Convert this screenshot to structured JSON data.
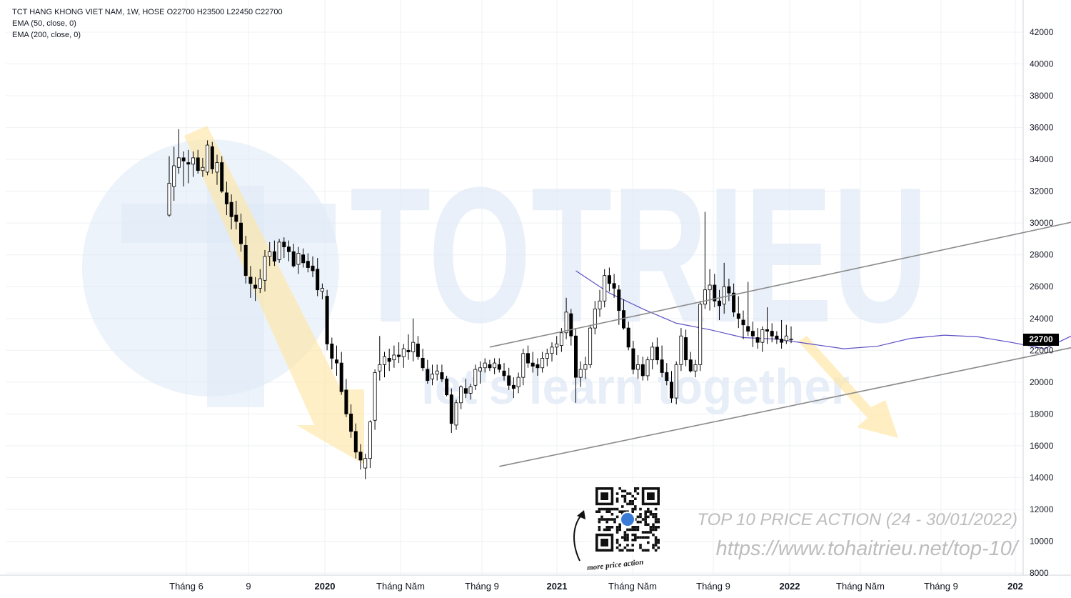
{
  "legend": {
    "line1": "TCT HANG KHONG VIET NAM, 1W, HOSE  O22700  H23500  L22450  C22700",
    "line2": "EMA (50, close, 0)",
    "line3": "EMA (200, close, 0)"
  },
  "last_price_label": "22700",
  "watermark": {
    "brand": "TOTRIEU",
    "slogan": "let's learn together"
  },
  "promo": {
    "title": "TOP 10 PRICE ACTION (24 - 30/01/2022)",
    "url": "https://www.tohaitrieu.net/top-10/",
    "qr_caption": "more price action"
  },
  "colors": {
    "up_candle": "#ffffff",
    "down_candle": "#000000",
    "ema50": "#5b4fc4",
    "trendline": "#8a8a8a",
    "arrow_fill": "#fde7a8",
    "watermark": "#dfe9f6",
    "price_tag_bg": "#000000"
  },
  "chart_data": {
    "type": "candlestick",
    "title": "TCT HANG KHONG VIET NAM, 1W, HOSE",
    "timeframe": "1W",
    "exchange": "HOSE",
    "last_bar": {
      "open": 22700,
      "high": 23500,
      "low": 22450,
      "close": 22700
    },
    "y_axis": {
      "ticks": [
        42000,
        40000,
        38000,
        36000,
        34000,
        32000,
        30000,
        28000,
        26000,
        24000,
        22000,
        20000,
        18000,
        16000,
        14000,
        12000,
        10000,
        8000
      ],
      "range": [
        8000,
        42500
      ],
      "position": "right"
    },
    "x_axis": {
      "ticks": [
        "Tháng 6",
        "9",
        "2020",
        "Tháng Năm",
        "Tháng 9",
        "2021",
        "Tháng Năm",
        "Tháng 9",
        "2022",
        "Tháng Năm",
        "Tháng 9",
        "202"
      ]
    },
    "grid": true,
    "ema50": [
      {
        "week": 85,
        "value": 27000
      },
      {
        "week": 92,
        "value": 25600
      },
      {
        "week": 99,
        "value": 24600
      },
      {
        "week": 106,
        "value": 23700
      },
      {
        "week": 113,
        "value": 23300
      },
      {
        "week": 120,
        "value": 22800
      },
      {
        "week": 127,
        "value": 22700
      },
      {
        "week": 134,
        "value": 22400
      },
      {
        "week": 141,
        "value": 22100
      },
      {
        "week": 148,
        "value": 22250
      },
      {
        "week": 155,
        "value": 22750
      },
      {
        "week": 162,
        "value": 22950
      },
      {
        "week": 169,
        "value": 22850
      },
      {
        "week": 176,
        "value": 22500
      },
      {
        "week": 183,
        "value": 22100
      },
      {
        "week": 190,
        "value": 23100
      },
      {
        "week": 197,
        "value": 23300
      },
      {
        "week": 204,
        "value": 23150
      }
    ],
    "candles": [
      [
        30500,
        34200,
        30400,
        32500
      ],
      [
        32300,
        34800,
        31400,
        33600
      ],
      [
        33500,
        35900,
        33100,
        34100
      ],
      [
        34100,
        34500,
        32300,
        33900
      ],
      [
        33800,
        34600,
        32500,
        33700
      ],
      [
        33700,
        34500,
        32900,
        34100
      ],
      [
        34100,
        34600,
        33100,
        33300
      ],
      [
        33300,
        34100,
        32900,
        33500
      ],
      [
        33200,
        35200,
        33000,
        34900
      ],
      [
        34800,
        35100,
        33100,
        33400
      ],
      [
        33200,
        34300,
        32400,
        33800
      ],
      [
        33800,
        34200,
        31900,
        32000
      ],
      [
        31900,
        32600,
        30500,
        31200
      ],
      [
        31300,
        31800,
        29600,
        30400
      ],
      [
        30500,
        31400,
        29600,
        30100
      ],
      [
        30000,
        30600,
        28200,
        28700
      ],
      [
        28600,
        29200,
        26200,
        26700
      ],
      [
        26600,
        27300,
        25300,
        26200
      ],
      [
        26100,
        26600,
        25100,
        25900
      ],
      [
        25900,
        27100,
        25600,
        26500
      ],
      [
        26400,
        28300,
        25700,
        27900
      ],
      [
        27900,
        28800,
        27300,
        28200
      ],
      [
        28200,
        28900,
        27300,
        27600
      ],
      [
        27700,
        29000,
        27500,
        28800
      ],
      [
        28800,
        29100,
        27800,
        28500
      ],
      [
        28500,
        28900,
        27600,
        28200
      ],
      [
        28200,
        28700,
        27200,
        27300
      ],
      [
        27400,
        28500,
        26800,
        28100
      ],
      [
        28000,
        28400,
        27200,
        27500
      ],
      [
        27600,
        28100,
        26900,
        27200
      ],
      [
        27300,
        27900,
        26600,
        27000
      ],
      [
        27100,
        27800,
        25400,
        25800
      ],
      [
        25700,
        26200,
        25200,
        25900
      ],
      [
        25400,
        25800,
        22000,
        22400
      ],
      [
        22400,
        22800,
        20800,
        21500
      ],
      [
        21400,
        22300,
        20400,
        21200
      ],
      [
        21200,
        21900,
        19200,
        19400
      ],
      [
        19500,
        20200,
        17800,
        18000
      ],
      [
        18000,
        18600,
        16500,
        16900
      ],
      [
        16900,
        17400,
        15200,
        15600
      ],
      [
        15600,
        16100,
        14500,
        15100
      ],
      [
        14600,
        15500,
        13900,
        15200
      ],
      [
        15200,
        17600,
        14600,
        17500
      ],
      [
        17600,
        20800,
        17000,
        20600
      ],
      [
        20700,
        22900,
        20100,
        21100
      ],
      [
        21100,
        21900,
        20300,
        21600
      ],
      [
        21500,
        22100,
        20700,
        21300
      ],
      [
        21400,
        22300,
        20900,
        21700
      ],
      [
        21700,
        22500,
        21200,
        21600
      ],
      [
        21600,
        22400,
        20900,
        22100
      ],
      [
        22000,
        23000,
        21400,
        21900
      ],
      [
        21900,
        24000,
        21300,
        22500
      ],
      [
        22400,
        22900,
        21400,
        21600
      ],
      [
        21500,
        22100,
        20700,
        20900
      ],
      [
        20800,
        21400,
        19900,
        20100
      ],
      [
        20200,
        21100,
        19800,
        20500
      ],
      [
        20500,
        21100,
        20100,
        20700
      ],
      [
        20600,
        21100,
        20000,
        20200
      ],
      [
        20200,
        20400,
        19100,
        19200
      ],
      [
        19200,
        19600,
        16800,
        17400
      ],
      [
        17300,
        18900,
        17000,
        18700
      ],
      [
        18700,
        19800,
        18300,
        19700
      ],
      [
        19600,
        20200,
        19000,
        19300
      ],
      [
        19300,
        19900,
        18900,
        19700
      ],
      [
        19800,
        21100,
        19500,
        20800
      ],
      [
        20700,
        21300,
        19900,
        20900
      ],
      [
        20900,
        21500,
        20600,
        21200
      ],
      [
        21100,
        21400,
        20700,
        20900
      ],
      [
        20900,
        21500,
        20500,
        21200
      ],
      [
        21100,
        21500,
        20600,
        20800
      ],
      [
        20700,
        21200,
        20100,
        20400
      ],
      [
        20400,
        20900,
        19500,
        19800
      ],
      [
        19800,
        20300,
        19000,
        19600
      ],
      [
        19700,
        20600,
        19300,
        20300
      ],
      [
        20300,
        22100,
        19800,
        21800
      ],
      [
        21800,
        22300,
        20900,
        21200
      ],
      [
        21200,
        21900,
        20600,
        21000
      ],
      [
        21100,
        21500,
        20400,
        20900
      ],
      [
        20900,
        21900,
        20600,
        21500
      ],
      [
        21500,
        22100,
        21000,
        21800
      ],
      [
        21800,
        22500,
        21300,
        22200
      ],
      [
        22200,
        22900,
        21700,
        22400
      ],
      [
        22300,
        23400,
        21900,
        23100
      ],
      [
        23100,
        25300,
        22700,
        24400
      ],
      [
        24300,
        24600,
        22300,
        22900
      ],
      [
        22900,
        23400,
        18700,
        20300
      ],
      [
        20300,
        21300,
        19700,
        20800
      ],
      [
        20800,
        21600,
        20200,
        21100
      ],
      [
        21100,
        23600,
        20900,
        23400
      ],
      [
        23400,
        25100,
        23000,
        24600
      ],
      [
        24600,
        25800,
        24100,
        25100
      ],
      [
        25100,
        27100,
        24700,
        26700
      ],
      [
        26700,
        27200,
        25700,
        26200
      ],
      [
        26200,
        26800,
        25300,
        25900
      ],
      [
        25800,
        26100,
        23600,
        24500
      ],
      [
        24500,
        25200,
        23300,
        23400
      ],
      [
        23400,
        23800,
        22000,
        22200
      ],
      [
        22100,
        22600,
        20500,
        20800
      ],
      [
        20800,
        21700,
        20200,
        21100
      ],
      [
        21100,
        21600,
        20100,
        20400
      ],
      [
        20400,
        21600,
        20100,
        21400
      ],
      [
        21400,
        22500,
        20800,
        22200
      ],
      [
        22200,
        22800,
        21100,
        21400
      ],
      [
        21400,
        22300,
        20300,
        20600
      ],
      [
        20600,
        21200,
        19800,
        20100
      ],
      [
        20000,
        20700,
        18700,
        19000
      ],
      [
        19000,
        21300,
        18600,
        21100
      ],
      [
        21100,
        23400,
        20700,
        22900
      ],
      [
        22800,
        23300,
        21000,
        21400
      ],
      [
        21400,
        21900,
        20600,
        20700
      ],
      [
        20700,
        21400,
        20300,
        21100
      ],
      [
        21100,
        25100,
        20700,
        24900
      ],
      [
        24900,
        30700,
        24600,
        25800
      ],
      [
        25800,
        27100,
        24500,
        26100
      ],
      [
        26100,
        26800,
        24700,
        25100
      ],
      [
        25100,
        25800,
        23900,
        24800
      ],
      [
        24900,
        27500,
        24300,
        26000
      ],
      [
        26000,
        26500,
        25100,
        25600
      ],
      [
        25600,
        26200,
        24100,
        24400
      ],
      [
        24300,
        25400,
        23400,
        24000
      ],
      [
        23900,
        24500,
        22700,
        23600
      ],
      [
        23500,
        26300,
        22900,
        23200
      ],
      [
        23200,
        23800,
        22200,
        22900
      ],
      [
        22800,
        23400,
        22100,
        22500
      ],
      [
        22500,
        23500,
        21900,
        23300
      ],
      [
        23300,
        24700,
        22400,
        23200
      ],
      [
        23200,
        23700,
        22500,
        22900
      ],
      [
        22900,
        23200,
        22400,
        22700
      ],
      [
        22700,
        23900,
        22100,
        22500
      ],
      [
        22600,
        23600,
        22400,
        22900
      ],
      [
        22700,
        23500,
        22450,
        22700
      ]
    ],
    "candle_start_week": 0,
    "trendlines": [
      {
        "from": {
          "week": 67,
          "value": 22200
        },
        "to": {
          "week": 208,
          "value": 31300
        },
        "arrow": true
      },
      {
        "from": {
          "week": 69,
          "value": 14700
        },
        "to": {
          "week": 218,
          "value": 24000
        },
        "arrow": true
      }
    ]
  }
}
